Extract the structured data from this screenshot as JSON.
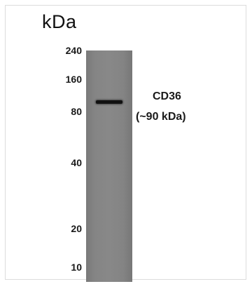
{
  "blot": {
    "unit_label": "kDa",
    "markers": [
      "240",
      "160",
      "80",
      "40",
      "20",
      "10"
    ],
    "target_name": "CD36",
    "target_size": "(~90 kDa)",
    "lane_color": "#858585",
    "band_color": "#111111"
  }
}
